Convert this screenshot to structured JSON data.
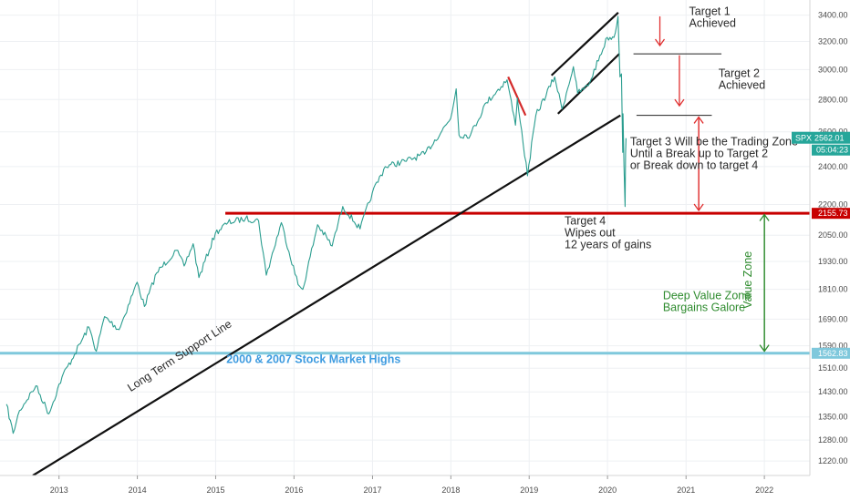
{
  "chart_data": {
    "type": "line",
    "symbol": "SPX",
    "y_scale": "log",
    "ylim": [
      1180,
      3520
    ],
    "xlim": [
      "2012-04-01",
      "2022-08-01"
    ],
    "grid": true,
    "x_ticks": [
      "2013",
      "2014",
      "2015",
      "2016",
      "2017",
      "2018",
      "2019",
      "2020",
      "2021",
      "2022"
    ],
    "y_ticks": [
      "3400.00",
      "3200.00",
      "3000.00",
      "2800.00",
      "2600.00",
      "2400.00",
      "2200.00",
      "2050.00",
      "1930.00",
      "1810.00",
      "1690.00",
      "1590.00",
      "1510.00",
      "1430.00",
      "1350.00",
      "1280.00",
      "1220.00"
    ],
    "series": [
      {
        "values": [
          [
            "2012-05-01",
            1390
          ],
          [
            "2012-06-01",
            1300
          ],
          [
            "2012-07-01",
            1370
          ],
          [
            "2012-09-15",
            1450
          ],
          [
            "2012-11-15",
            1360
          ],
          [
            "2013-01-15",
            1480
          ],
          [
            "2013-03-15",
            1560
          ],
          [
            "2013-05-20",
            1660
          ],
          [
            "2013-06-24",
            1570
          ],
          [
            "2013-08-01",
            1700
          ],
          [
            "2013-10-08",
            1650
          ],
          [
            "2013-12-31",
            1840
          ],
          [
            "2014-02-03",
            1740
          ],
          [
            "2014-04-01",
            1880
          ],
          [
            "2014-07-01",
            1980
          ],
          [
            "2014-08-07",
            1910
          ],
          [
            "2014-09-18",
            2010
          ],
          [
            "2014-10-15",
            1860
          ],
          [
            "2014-12-31",
            2060
          ],
          [
            "2015-02-27",
            2110
          ],
          [
            "2015-05-20",
            2130
          ],
          [
            "2015-07-20",
            2120
          ],
          [
            "2015-08-25",
            1870
          ],
          [
            "2015-11-03",
            2110
          ],
          [
            "2016-01-20",
            1830
          ],
          [
            "2016-02-11",
            1810
          ],
          [
            "2016-04-20",
            2100
          ],
          [
            "2016-06-27",
            2000
          ],
          [
            "2016-08-15",
            2190
          ],
          [
            "2016-11-04",
            2080
          ],
          [
            "2016-12-31",
            2260
          ],
          [
            "2017-03-01",
            2400
          ],
          [
            "2017-06-01",
            2430
          ],
          [
            "2017-09-01",
            2470
          ],
          [
            "2017-12-31",
            2680
          ],
          [
            "2018-01-26",
            2870
          ],
          [
            "2018-02-08",
            2580
          ],
          [
            "2018-04-02",
            2580
          ],
          [
            "2018-06-15",
            2780
          ],
          [
            "2018-09-20",
            2930
          ],
          [
            "2018-10-29",
            2640
          ],
          [
            "2018-11-07",
            2810
          ],
          [
            "2018-12-24",
            2350
          ],
          [
            "2019-02-01",
            2700
          ],
          [
            "2019-04-30",
            2950
          ],
          [
            "2019-06-03",
            2740
          ],
          [
            "2019-07-26",
            3020
          ],
          [
            "2019-08-15",
            2840
          ],
          [
            "2019-10-03",
            2890
          ],
          [
            "2019-12-31",
            3230
          ],
          [
            "2020-01-31",
            3230
          ],
          [
            "2020-02-19",
            3390
          ],
          [
            "2020-02-28",
            2950
          ],
          [
            "2020-03-06",
            2970
          ],
          [
            "2020-03-12",
            2480
          ],
          [
            "2020-03-13",
            2710
          ],
          [
            "2020-03-18",
            2400
          ],
          [
            "2020-03-23",
            2190
          ],
          [
            "2020-03-25",
            2470
          ],
          [
            "2020-03-27",
            2562
          ]
        ]
      }
    ],
    "horizontal_lines": [
      {
        "y": 2155.73,
        "label": "2155.73",
        "color": "#c80000",
        "x_start": "2015-02-15"
      },
      {
        "y": 1562.83,
        "label": "1562.83",
        "color": "#7fc8dc",
        "x_start": "2012-04-01"
      }
    ],
    "target_lines": [
      {
        "y": 3110,
        "x_start": "2020-05-01",
        "x_end": "2021-06-15"
      },
      {
        "y": 2700,
        "x_start": "2020-05-15",
        "x_end": "2021-05-01"
      }
    ],
    "trendlines": [
      {
        "name": "Long Term Support Line",
        "from": [
          "2012-09-01",
          1180
        ],
        "to": [
          "2020-03-01",
          2700
        ]
      },
      {
        "from": [
          "2018-09-25",
          2950
        ],
        "to": [
          "2018-12-15",
          2700
        ],
        "color": "#d42a2a"
      },
      {
        "from": [
          "2019-05-15",
          2710
        ],
        "to": [
          "2020-02-25",
          3110
        ]
      },
      {
        "from": [
          "2019-04-15",
          2960
        ],
        "to": [
          "2020-02-20",
          3420
        ]
      }
    ],
    "arrows": [
      {
        "x": "2020-09-01",
        "from": 3390,
        "to": 3170
      },
      {
        "x": "2020-12-01",
        "from": 3100,
        "to": 2760
      },
      {
        "x": "2021-03-01",
        "from": 2690,
        "to": 2170
      },
      {
        "x": "2021-03-01",
        "from": 2170,
        "to": 2690
      },
      {
        "x": "2022-01-01",
        "from": 2150,
        "to": 1570,
        "color": "#2e8b2e"
      },
      {
        "x": "2022-01-01",
        "from": 1570,
        "to": 2150,
        "color": "#2e8b2e"
      }
    ],
    "annotations": [
      {
        "lines": [
          "Target 1",
          "Achieved"
        ],
        "x": "2021-01-15",
        "y": 3400
      },
      {
        "lines": [
          "Target 2",
          "Achieved"
        ],
        "x": "2021-06-01",
        "y": 2950
      },
      {
        "lines": [
          "Target 3 Will be the Trading Zone",
          "Until a Break up to Target 2",
          "or Break down to target 4"
        ],
        "x": "2020-04-15",
        "y": 2520
      },
      {
        "lines": [
          "Target 4",
          "Wipes out",
          "12 years of gains"
        ],
        "x": "2019-06-15",
        "y": 2100
      },
      {
        "lines": [
          "Deep Value Zone",
          "Bargains Galore"
        ],
        "x": "2020-09-15",
        "y": 1770,
        "color": "green"
      },
      {
        "lines": [
          "Value Zone"
        ],
        "x": "2021-11-01",
        "y": 1850,
        "color": "green",
        "rotate": -90
      },
      {
        "lines": [
          "2000 & 2007 Stock Market Highs"
        ],
        "x": "2016-04-01",
        "y": 1528,
        "color": "blue"
      },
      {
        "lines": [
          "Long Term Support Line"
        ],
        "x": "2013-12-01",
        "y": 1430,
        "rotate": -33
      }
    ],
    "price_badge": {
      "symbol": "SPX",
      "value": "2562.01",
      "time": "05:04:23"
    }
  }
}
